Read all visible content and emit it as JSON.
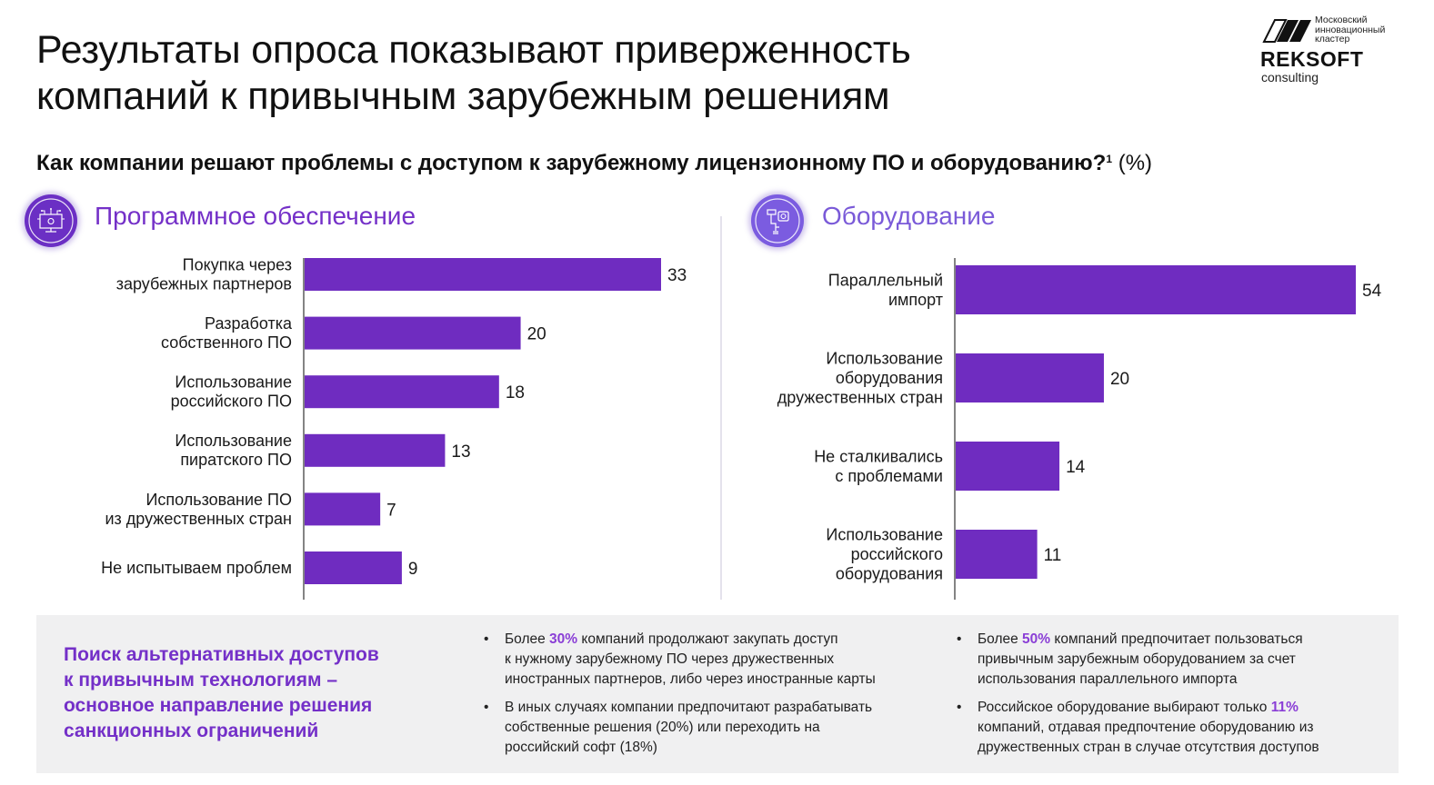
{
  "header": {
    "title_lines": [
      "Результаты опроса показывают приверженность",
      "компаний к привычным зарубежным решениям"
    ],
    "logo": {
      "cluster_lines": [
        "Московский",
        "инновационный",
        "кластер"
      ],
      "brand": "REKSOFT",
      "sub": "consulting"
    }
  },
  "question": {
    "text": "Как компании решают проблемы с доступом к зарубежному лицензионному ПО и оборудованию?",
    "footnote": "1",
    "unit": " (%)"
  },
  "sections": {
    "software": {
      "title": "Программное обеспечение",
      "icon": "monitor-circuit-icon"
    },
    "hardware": {
      "title": "Оборудование",
      "icon": "robotic-arm-icon"
    }
  },
  "colors": {
    "bar": "#6f2cc0",
    "accent": "#7430c8",
    "panel_bg": "#f0f0f1",
    "axis": "#333333"
  },
  "chart_data": [
    {
      "type": "bar",
      "orientation": "horizontal",
      "title": "Программное обеспечение",
      "xlabel": "",
      "ylabel": "",
      "unit": "%",
      "categories": [
        [
          "Покупка через",
          "зарубежных партнеров"
        ],
        [
          "Разработка",
          "собственного ПО"
        ],
        [
          "Использование",
          "российского ПО"
        ],
        [
          "Использование",
          "пиратского ПО"
        ],
        [
          "Использование ПО",
          "из дружественных стран"
        ],
        [
          "Не испытываем проблем"
        ]
      ],
      "values": [
        33,
        20,
        18,
        13,
        7,
        9
      ],
      "xlim": [
        0,
        33
      ],
      "grid": false,
      "legend": "none"
    },
    {
      "type": "bar",
      "orientation": "horizontal",
      "title": "Оборудование",
      "xlabel": "",
      "ylabel": "",
      "unit": "%",
      "categories": [
        [
          "Параллельный",
          "импорт"
        ],
        [
          "Использование",
          "оборудования",
          "дружественных стран"
        ],
        [
          "Не сталкивались",
          "с проблемами"
        ],
        [
          "Использование",
          "российского",
          "оборудования"
        ]
      ],
      "values": [
        54,
        20,
        14,
        11
      ],
      "xlim": [
        0,
        54
      ],
      "grid": false,
      "legend": "none"
    }
  ],
  "conclusion": {
    "lines": [
      "Поиск альтернативных доступов",
      "к привычным технологиям –",
      "основное направление решения",
      "санкционных ограничений"
    ]
  },
  "bullets_software": [
    {
      "pre": "Более ",
      "highlight": "30%",
      "post_first": " компаний продолжают закупать доступ",
      "rest": [
        "к нужному зарубежному ПО через дружественных",
        "иностранных партнеров, либо через иностранные карты"
      ]
    },
    {
      "pre": "В иных случаях компании предпочитают разрабатывать",
      "highlight": "",
      "post_first": "",
      "rest": [
        "собственные решения (20%) или переходить на",
        "российский софт (18%)"
      ]
    }
  ],
  "bullets_hardware": [
    {
      "pre": "Более ",
      "highlight": "50%",
      "post_first": " компаний предпочитает пользоваться",
      "rest": [
        "привычным зарубежным оборудованием за счет",
        "использования параллельного импорта"
      ]
    },
    {
      "pre": "Российское оборудование выбирают только ",
      "highlight": "11%",
      "post_first": "",
      "rest": [
        "компаний, отдавая предпочтение оборудованию из",
        "дружественных стран в случае отсутствия доступов"
      ]
    }
  ],
  "bullet_glyph": "•"
}
